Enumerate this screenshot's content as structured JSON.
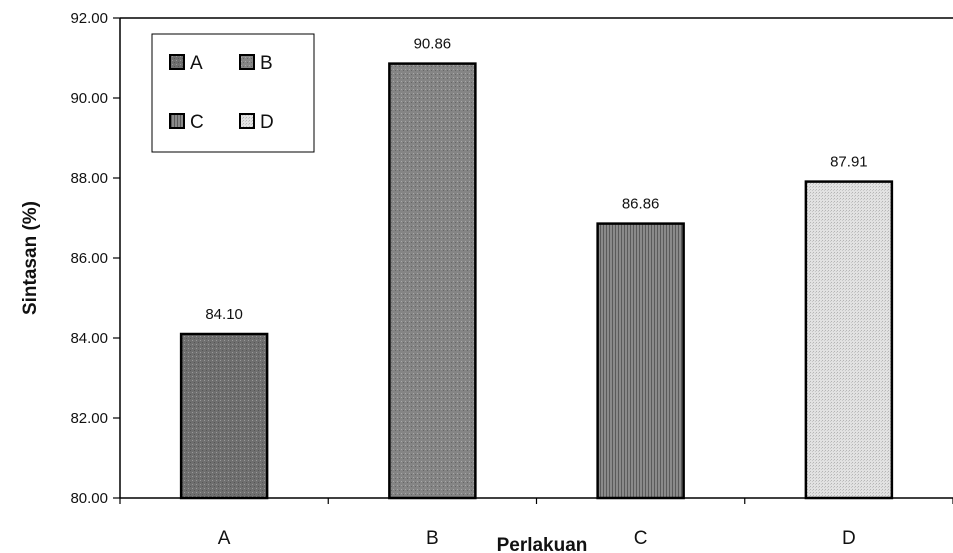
{
  "chart_data": {
    "type": "bar",
    "categories": [
      "A",
      "B",
      "C",
      "D"
    ],
    "values": [
      84.1,
      90.86,
      86.86,
      87.91
    ],
    "value_labels": [
      "84.10",
      "90.86",
      "86.86",
      "87.91"
    ],
    "title": "",
    "xlabel": "Perlakuan",
    "ylabel": "Sintasan (%)",
    "ylim": [
      80,
      92
    ],
    "yticks": [
      "80.00",
      "82.00",
      "84.00",
      "86.00",
      "88.00",
      "90.00",
      "92.00"
    ],
    "grid": false,
    "legend_position": "top-left",
    "legend": [
      {
        "label": "A",
        "fill": "#6f6f6f"
      },
      {
        "label": "B",
        "fill": "#858585"
      },
      {
        "label": "C",
        "fill": "#7a7a7a"
      },
      {
        "label": "D",
        "fill": "#d6d6d6"
      }
    ],
    "bar_fills": [
      "#6f6f6f",
      "#858585",
      "#7a7a7a",
      "#d6d6d6"
    ],
    "bar_stroke": "#000000"
  }
}
